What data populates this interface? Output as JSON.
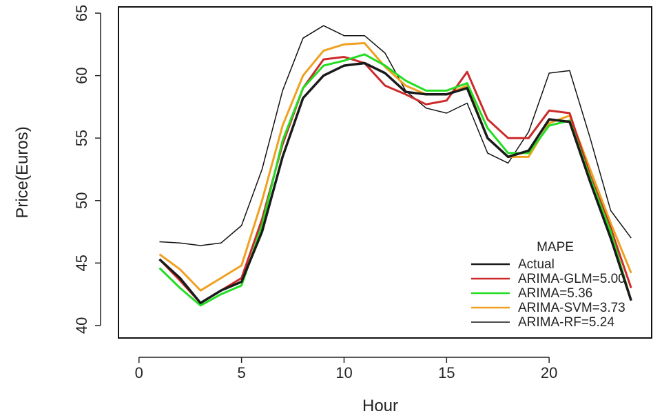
{
  "chart_data": {
    "type": "line",
    "title": "",
    "xlabel": "Hour",
    "ylabel": "Price(Euros)",
    "xlim": [
      -1,
      25
    ],
    "ylim": [
      39,
      65.5
    ],
    "xticks": [
      0,
      5,
      10,
      15,
      20
    ],
    "yticks": [
      40,
      45,
      50,
      55,
      60,
      65
    ],
    "grid": false,
    "legend": {
      "title": "MAPE",
      "position": "bottom-right"
    },
    "x": [
      1,
      2,
      3,
      4,
      5,
      6,
      7,
      8,
      9,
      10,
      11,
      12,
      13,
      14,
      15,
      16,
      17,
      18,
      19,
      20,
      21,
      22,
      23,
      24
    ],
    "series": [
      {
        "name": "Actual",
        "color": "#1a1a1a",
        "values": [
          45.3,
          43.8,
          41.8,
          42.8,
          43.5,
          47.5,
          53.5,
          58.2,
          60.0,
          60.8,
          61.0,
          60.2,
          58.7,
          58.5,
          58.5,
          59.0,
          55.0,
          53.5,
          54.0,
          56.5,
          56.3,
          51.5,
          47.0,
          42.0
        ]
      },
      {
        "name": "ARIMA-GLM=5.00",
        "color": "#cc2a2a",
        "values": [
          45.3,
          43.6,
          41.8,
          42.8,
          43.8,
          48.5,
          54.5,
          59.0,
          61.3,
          61.5,
          61.0,
          59.2,
          58.5,
          57.7,
          58.0,
          60.3,
          56.5,
          55.0,
          55.0,
          57.2,
          57.0,
          52.0,
          47.8,
          43.0
        ]
      },
      {
        "name": "ARIMA=5.36",
        "color": "#22dd22",
        "values": [
          44.6,
          43.0,
          41.6,
          42.5,
          43.2,
          48.0,
          54.8,
          59.0,
          60.8,
          61.2,
          61.7,
          60.8,
          59.6,
          58.8,
          58.8,
          59.4,
          55.8,
          53.8,
          53.8,
          56.0,
          56.4,
          51.8,
          47.5,
          42.0
        ]
      },
      {
        "name": "ARIMA-SVM=3.73",
        "color": "#f0a020",
        "values": [
          45.7,
          44.5,
          42.8,
          43.8,
          44.8,
          50.0,
          56.0,
          60.0,
          62.0,
          62.5,
          62.6,
          60.7,
          59.2,
          58.5,
          58.5,
          59.2,
          55.0,
          53.5,
          53.5,
          56.2,
          56.8,
          52.5,
          48.2,
          44.2
        ]
      },
      {
        "name": "ARIMA-RF=5.24",
        "color": "#111111",
        "values": [
          46.7,
          46.6,
          46.4,
          46.6,
          48.0,
          52.5,
          58.8,
          63.0,
          64.0,
          63.2,
          63.2,
          61.8,
          58.8,
          57.4,
          57.0,
          57.8,
          53.8,
          53.0,
          55.5,
          60.2,
          60.4,
          55.0,
          49.2,
          47.0
        ]
      }
    ]
  }
}
